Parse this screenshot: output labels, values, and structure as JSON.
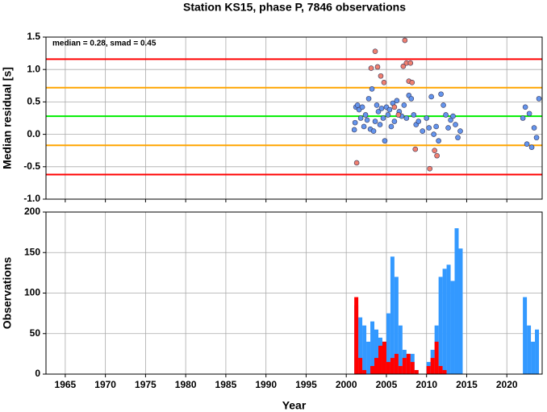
{
  "chart_data": [
    {
      "type": "scatter",
      "title": "Station KS15, phase P, 7846 observations",
      "annotation": "median = 0.28, smad = 0.45",
      "y_label": "Median residual [s]",
      "xlim": [
        1962.6,
        2024.4
      ],
      "xticks": [
        1965,
        1970,
        1975,
        1980,
        1985,
        1990,
        1995,
        2000,
        2005,
        2010,
        2015,
        2020
      ],
      "ylim": [
        -1.0,
        1.5
      ],
      "yticks": [
        1.5,
        {
          "value": 1.0,
          "label": "1.0"
        },
        0.5,
        {
          "value": 0,
          "label": "0.0"
        },
        -0.5,
        {
          "value": -1.0,
          "label": "-1.0"
        }
      ],
      "grid": true,
      "reference_lines": [
        {
          "value": 1.16,
          "color": "#ff0000"
        },
        {
          "value": 0.72,
          "color": "#ffa500"
        },
        {
          "value": 0.28,
          "color": "#00ee00"
        },
        {
          "value": -0.17,
          "color": "#ffa500"
        },
        {
          "value": -0.62,
          "color": "#ff0000"
        }
      ],
      "series": [
        {
          "color": "#6495ed",
          "x": [
            2001.0,
            2001.1,
            2001.2,
            2001.4,
            2001.6,
            2001.8,
            2002.0,
            2002.2,
            2002.4,
            2002.6,
            2002.8,
            2003.0,
            2003.2,
            2003.4,
            2003.6,
            2003.8,
            2004.0,
            2004.2,
            2004.4,
            2004.6,
            2004.8,
            2005.0,
            2005.2,
            2005.4,
            2005.6,
            2005.8,
            2006.0,
            2006.3,
            2006.6,
            2006.9,
            2007.2,
            2007.5,
            2007.8,
            2008.1,
            2008.4,
            2008.7,
            2009.0,
            2009.5,
            2010.0,
            2010.3,
            2010.6,
            2010.9,
            2011.2,
            2011.5,
            2011.8,
            2012.1,
            2012.4,
            2012.7,
            2013.0,
            2013.3,
            2013.6,
            2013.9,
            2014.2,
            2022.0,
            2022.3,
            2022.5,
            2022.8,
            2023.1,
            2023.4,
            2023.7,
            2024.0
          ],
          "values": [
            0.07,
            0.18,
            0.42,
            0.45,
            0.38,
            0.25,
            0.42,
            0.12,
            0.3,
            0.22,
            0.55,
            0.08,
            0.7,
            0.05,
            0.2,
            0.45,
            0.35,
            0.15,
            0.4,
            0.25,
            -0.1,
            0.42,
            0.3,
            0.38,
            0.12,
            0.48,
            0.2,
            0.52,
            0.35,
            0.28,
            0.45,
            0.25,
            0.6,
            0.55,
            0.3,
            0.15,
            0.2,
            0.05,
            0.25,
            0.1,
            0.58,
            0.0,
            0.12,
            -0.1,
            0.62,
            0.45,
            0.3,
            0.1,
            0.22,
            0.28,
            0.15,
            -0.05,
            0.05,
            0.25,
            0.42,
            -0.15,
            0.32,
            -0.2,
            0.1,
            -0.05,
            0.55
          ]
        },
        {
          "color": "#f08070",
          "x": [
            2001.3,
            2003.1,
            2003.6,
            2003.9,
            2004.3,
            2004.7,
            2006.0,
            2006.5,
            2007.1,
            2007.3,
            2007.5,
            2007.8,
            2008.0,
            2008.2,
            2008.6,
            2010.4,
            2011.0,
            2011.3
          ],
          "values": [
            -0.44,
            1.02,
            1.28,
            1.04,
            0.9,
            0.8,
            0.42,
            0.3,
            1.05,
            1.45,
            1.1,
            0.82,
            1.1,
            0.8,
            -0.23,
            -0.53,
            -0.25,
            -0.33
          ]
        }
      ]
    },
    {
      "type": "histogram",
      "x_label": "Year",
      "y_label": "Observations",
      "xlim": [
        1962.6,
        2024.4
      ],
      "xticks": [
        1965,
        1970,
        1975,
        1980,
        1985,
        1990,
        1995,
        2000,
        2005,
        2010,
        2015,
        2020
      ],
      "ylim": [
        0,
        200
      ],
      "yticks": [
        0,
        50,
        100,
        150,
        200
      ],
      "grid": true,
      "bins": [
        2001,
        2001.5,
        2002,
        2002.5,
        2003,
        2003.5,
        2004,
        2004.5,
        2005,
        2005.5,
        2006,
        2006.5,
        2007,
        2007.5,
        2008,
        2008.5,
        2009,
        2009.5,
        2010,
        2010.5,
        2011,
        2011.5,
        2012,
        2012.5,
        2013,
        2013.5,
        2014,
        2014.5,
        2015,
        2015.5,
        2016,
        2016.5,
        2017,
        2017.5,
        2018,
        2018.5,
        2019,
        2019.5,
        2020,
        2020.5,
        2021,
        2021.5,
        2022,
        2022.5,
        2023,
        2023.5,
        2024
      ],
      "series": [
        {
          "color": "#3399ff",
          "values": [
            85,
            70,
            60,
            40,
            65,
            55,
            45,
            40,
            75,
            145,
            120,
            60,
            30,
            25,
            25,
            5,
            0,
            0,
            15,
            30,
            60,
            120,
            130,
            135,
            115,
            180,
            155,
            0,
            0,
            0,
            0,
            0,
            0,
            0,
            0,
            0,
            0,
            0,
            0,
            0,
            0,
            0,
            95,
            60,
            40,
            55
          ]
        },
        {
          "color": "#ff0000",
          "values": [
            95,
            20,
            5,
            0,
            10,
            20,
            35,
            40,
            15,
            20,
            25,
            10,
            20,
            25,
            15,
            5,
            0,
            0,
            10,
            20,
            40,
            10,
            5,
            0,
            0,
            0,
            0,
            0,
            0,
            0,
            0,
            0,
            0,
            0,
            0,
            0,
            0,
            0,
            0,
            0,
            0,
            0,
            0,
            0,
            0,
            0
          ]
        }
      ]
    }
  ]
}
